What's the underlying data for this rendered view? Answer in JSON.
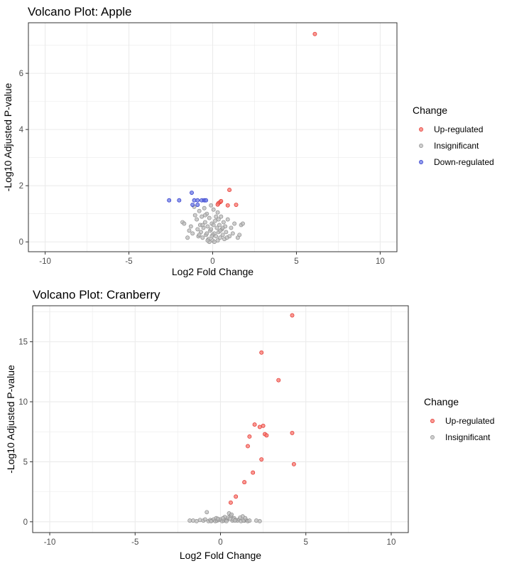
{
  "colors": {
    "up": "#f8766d",
    "up_stroke": "#e0302a",
    "insignificant": "#bdbdbd",
    "insignificant_stroke": "#8e8e8e",
    "down": "#6b79e6",
    "down_stroke": "#2a34c8",
    "grid": "#ebebeb",
    "panel_border": "#333333"
  },
  "chart_data": [
    {
      "type": "scatter",
      "title": "Volcano Plot: Apple",
      "xlabel": "Log2 Fold Change",
      "ylabel": "-Log10 Adjusted P-value",
      "xlim": [
        -11,
        11
      ],
      "ylim": [
        -0.35,
        7.8
      ],
      "xticks": [
        -10,
        -5,
        0,
        5,
        10
      ],
      "yticks": [
        0,
        2,
        4,
        6
      ],
      "grid": true,
      "legend": {
        "title": "Change",
        "position": "right",
        "entries": [
          {
            "label": "Up-regulated",
            "key": "up"
          },
          {
            "label": "Insignificant",
            "key": "insignificant"
          },
          {
            "label": "Down-regulated",
            "key": "down"
          }
        ]
      },
      "series": [
        {
          "key": "up",
          "points": [
            [
              6.1,
              7.4
            ],
            [
              1.0,
              1.85
            ],
            [
              1.4,
              1.32
            ],
            [
              0.9,
              1.3
            ],
            [
              0.45,
              1.42
            ],
            [
              0.35,
              1.38
            ],
            [
              0.3,
              1.33
            ],
            [
              0.5,
              1.45
            ]
          ]
        },
        {
          "key": "down",
          "points": [
            [
              -2.6,
              1.48
            ],
            [
              -2.0,
              1.48
            ],
            [
              -1.25,
              1.75
            ],
            [
              -1.1,
              1.48
            ],
            [
              -0.9,
              1.48
            ],
            [
              -0.65,
              1.48
            ],
            [
              -0.5,
              1.48
            ],
            [
              -0.4,
              1.48
            ],
            [
              -1.2,
              1.32
            ],
            [
              -0.9,
              1.32
            ]
          ]
        },
        {
          "key": "insignificant",
          "points": [
            [
              -1.8,
              0.7
            ],
            [
              -1.7,
              0.65
            ],
            [
              -1.3,
              0.55
            ],
            [
              -1.2,
              0.3
            ],
            [
              -1.1,
              1.25
            ],
            [
              -1.05,
              0.95
            ],
            [
              -0.95,
              0.8
            ],
            [
              -0.9,
              0.45
            ],
            [
              -0.85,
              0.2
            ],
            [
              -0.8,
              1.1
            ],
            [
              -0.75,
              0.6
            ],
            [
              -0.7,
              0.35
            ],
            [
              -0.65,
              0.9
            ],
            [
              -0.6,
              0.15
            ],
            [
              -0.55,
              0.5
            ],
            [
              -0.5,
              1.2
            ],
            [
              -0.45,
              0.7
            ],
            [
              -0.4,
              0.25
            ],
            [
              -0.35,
              1.0
            ],
            [
              -0.3,
              0.55
            ],
            [
              -0.25,
              0.1
            ],
            [
              -0.2,
              0.85
            ],
            [
              -0.15,
              0.4
            ],
            [
              -0.1,
              1.3
            ],
            [
              -0.05,
              0.65
            ],
            [
              0.0,
              0.05
            ],
            [
              0.05,
              1.15
            ],
            [
              0.1,
              0.3
            ],
            [
              0.15,
              0.75
            ],
            [
              0.2,
              0.2
            ],
            [
              0.25,
              0.5
            ],
            [
              0.3,
              1.05
            ],
            [
              0.35,
              0.35
            ],
            [
              0.4,
              0.6
            ],
            [
              0.45,
              0.15
            ],
            [
              0.5,
              0.9
            ],
            [
              0.55,
              0.45
            ],
            [
              0.6,
              0.25
            ],
            [
              0.65,
              0.7
            ],
            [
              0.7,
              0.1
            ],
            [
              0.75,
              0.55
            ],
            [
              0.8,
              0.35
            ],
            [
              0.9,
              0.8
            ],
            [
              1.0,
              0.2
            ],
            [
              1.1,
              0.5
            ],
            [
              1.2,
              0.3
            ],
            [
              1.3,
              0.65
            ],
            [
              1.5,
              0.15
            ],
            [
              1.7,
              0.6
            ],
            [
              1.8,
              0.65
            ],
            [
              1.6,
              0.25
            ],
            [
              -1.5,
              0.15
            ],
            [
              -1.4,
              0.4
            ],
            [
              -0.2,
              0.0
            ],
            [
              0.0,
              0.25
            ],
            [
              0.1,
              0.0
            ],
            [
              -0.3,
              0.05
            ],
            [
              0.3,
              0.05
            ],
            [
              -0.6,
              0.6
            ],
            [
              0.6,
              0.5
            ],
            [
              -0.1,
              0.45
            ],
            [
              0.2,
              0.9
            ],
            [
              -0.45,
              0.95
            ],
            [
              0.45,
              0.4
            ],
            [
              -0.8,
              0.25
            ],
            [
              0.85,
              0.15
            ],
            [
              -0.05,
              0.2
            ],
            [
              0.05,
              0.6
            ],
            [
              -0.35,
              0.3
            ],
            [
              0.35,
              0.8
            ]
          ]
        }
      ]
    },
    {
      "type": "scatter",
      "title": "Volcano Plot: Cranberry",
      "xlabel": "Log2 Fold Change",
      "ylabel": "-Log10 Adjusted P-value",
      "xlim": [
        -11,
        11
      ],
      "ylim": [
        -0.9,
        18.0
      ],
      "xticks": [
        -10,
        -5,
        0,
        5,
        10
      ],
      "yticks": [
        0,
        5,
        10,
        15
      ],
      "grid": true,
      "legend": {
        "title": "Change",
        "position": "right",
        "entries": [
          {
            "label": "Up-regulated",
            "key": "up"
          },
          {
            "label": "Insignificant",
            "key": "insignificant"
          }
        ]
      },
      "series": [
        {
          "key": "up",
          "points": [
            [
              4.2,
              17.2
            ],
            [
              2.4,
              14.1
            ],
            [
              3.4,
              11.8
            ],
            [
              2.0,
              8.1
            ],
            [
              2.3,
              7.9
            ],
            [
              2.5,
              8.0
            ],
            [
              2.6,
              7.3
            ],
            [
              2.7,
              7.2
            ],
            [
              4.2,
              7.4
            ],
            [
              1.7,
              7.1
            ],
            [
              1.6,
              6.3
            ],
            [
              2.4,
              5.2
            ],
            [
              4.3,
              4.8
            ],
            [
              1.9,
              4.1
            ],
            [
              1.4,
              3.3
            ],
            [
              0.9,
              2.1
            ],
            [
              0.6,
              1.6
            ]
          ]
        },
        {
          "key": "insignificant",
          "points": [
            [
              -1.8,
              0.1
            ],
            [
              -1.6,
              0.1
            ],
            [
              -1.2,
              0.15
            ],
            [
              -1.0,
              0.1
            ],
            [
              -0.9,
              0.2
            ],
            [
              -0.8,
              0.8
            ],
            [
              -0.7,
              0.05
            ],
            [
              -0.6,
              0.15
            ],
            [
              -0.5,
              0.1
            ],
            [
              -0.4,
              0.2
            ],
            [
              -0.3,
              0.05
            ],
            [
              -0.2,
              0.1
            ],
            [
              -0.1,
              0.15
            ],
            [
              0.0,
              0.2
            ],
            [
              0.1,
              0.05
            ],
            [
              0.2,
              0.1
            ],
            [
              0.3,
              0.15
            ],
            [
              0.4,
              0.2
            ],
            [
              0.5,
              0.7
            ],
            [
              0.6,
              0.5
            ],
            [
              0.7,
              0.1
            ],
            [
              0.8,
              0.3
            ],
            [
              0.9,
              0.15
            ],
            [
              1.0,
              0.1
            ],
            [
              1.1,
              0.2
            ],
            [
              1.2,
              0.05
            ],
            [
              1.3,
              0.45
            ],
            [
              1.4,
              0.1
            ],
            [
              1.5,
              0.15
            ],
            [
              1.6,
              0.05
            ],
            [
              1.7,
              0.1
            ],
            [
              2.1,
              0.1
            ],
            [
              2.3,
              0.05
            ],
            [
              -1.4,
              0.05
            ],
            [
              -0.25,
              0.3
            ],
            [
              0.45,
              0.35
            ],
            [
              0.25,
              0.4
            ],
            [
              0.65,
              0.6
            ],
            [
              0.75,
              0.2
            ],
            [
              -0.15,
              0.25
            ],
            [
              0.15,
              0.3
            ],
            [
              -0.55,
              0.05
            ],
            [
              0.55,
              0.25
            ],
            [
              0.35,
              0.05
            ],
            [
              0.85,
              0.1
            ],
            [
              1.15,
              0.35
            ],
            [
              1.35,
              0.1
            ],
            [
              1.45,
              0.3
            ]
          ]
        }
      ]
    }
  ]
}
